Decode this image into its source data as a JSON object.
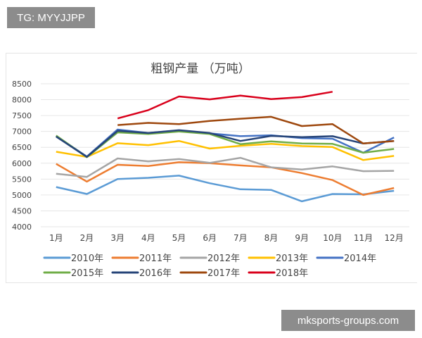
{
  "watermarks": {
    "top_left": "TG: MYYJJPP",
    "bottom_right": "mksports-groups.com"
  },
  "chart_data": {
    "type": "line",
    "title": "粗钢产量 （万吨）",
    "xlabel": "",
    "ylabel": "",
    "ylim": [
      4000,
      8500
    ],
    "yticks": [
      4000,
      4500,
      5000,
      5500,
      6000,
      6500,
      7000,
      7500,
      8000,
      8500
    ],
    "grid": true,
    "legend_placement": "bottom",
    "categories": [
      "1月",
      "2月",
      "3月",
      "4月",
      "5月",
      "6月",
      "7月",
      "8月",
      "9月",
      "10月",
      "11月",
      "12月"
    ],
    "series": [
      {
        "name": "2010年",
        "color": "#5b9bd5",
        "values": [
          5250,
          5030,
          5500,
          5540,
          5610,
          5370,
          5180,
          5160,
          4800,
          5030,
          5020,
          5130
        ]
      },
      {
        "name": "2011年",
        "color": "#ed7d31",
        "values": [
          5980,
          5420,
          5950,
          5910,
          6030,
          6000,
          5930,
          5870,
          5690,
          5470,
          5000,
          5220
        ]
      },
      {
        "name": "2012年",
        "color": "#a5a5a5",
        "values": [
          5670,
          5570,
          6150,
          6060,
          6130,
          6010,
          6170,
          5870,
          5800,
          5900,
          5750,
          5760
        ]
      },
      {
        "name": "2013年",
        "color": "#ffc000",
        "values": [
          6360,
          6200,
          6630,
          6570,
          6700,
          6460,
          6550,
          6610,
          6540,
          6510,
          6100,
          6230
        ]
      },
      {
        "name": "2014年",
        "color": "#4472c4",
        "values": [
          6850,
          6210,
          7060,
          6950,
          7030,
          6940,
          6850,
          6880,
          6790,
          6770,
          6330,
          6810
        ]
      },
      {
        "name": "2015年",
        "color": "#70ad47",
        "values": [
          6870,
          6190,
          6970,
          6920,
          7000,
          6920,
          6600,
          6690,
          6620,
          6610,
          6330,
          6450
        ]
      },
      {
        "name": "2016年",
        "color": "#264478",
        "values": [
          6840,
          6200,
          7020,
          6950,
          7040,
          6950,
          6700,
          6860,
          6820,
          6850,
          6620,
          6700
        ]
      },
      {
        "name": "2017年",
        "color": "#9e480e",
        "values": [
          null,
          null,
          7200,
          7270,
          7230,
          7330,
          7400,
          7460,
          7170,
          7230,
          6620,
          6700
        ]
      },
      {
        "name": "2018年",
        "color": "#d9001b",
        "values": [
          null,
          null,
          7410,
          7670,
          8100,
          8010,
          8130,
          8020,
          8080,
          8250,
          null,
          null
        ]
      }
    ]
  }
}
